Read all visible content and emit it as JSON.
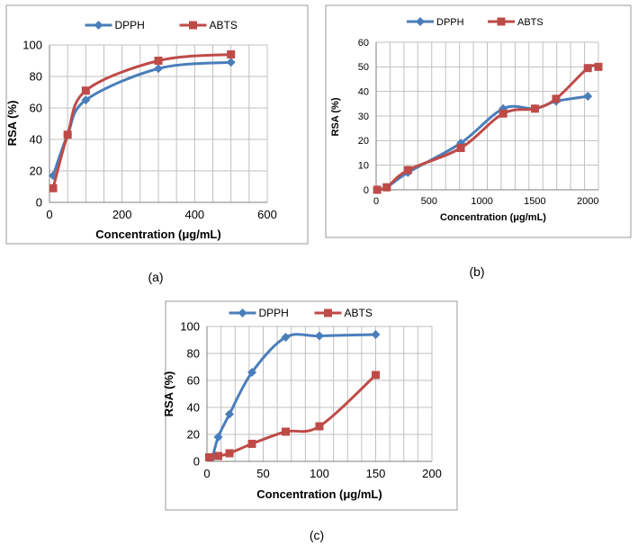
{
  "chart_data": [
    {
      "type": "line",
      "caption": "(a)",
      "xlabel": "Concentration (μg/mL)",
      "ylabel": "RSA (%)",
      "xlim": [
        0,
        600
      ],
      "ylim": [
        0,
        100
      ],
      "xticks": [
        0,
        200,
        400,
        600
      ],
      "yticks": [
        0,
        20,
        40,
        60,
        80,
        100
      ],
      "grid": true,
      "legend": "top-center",
      "series": [
        {
          "name": "DPPH",
          "marker": "diamond",
          "color": "#4a7ebb",
          "x": [
            10,
            50,
            100,
            300,
            500
          ],
          "y": [
            17,
            43,
            65,
            85,
            89
          ]
        },
        {
          "name": "ABTS",
          "marker": "square",
          "color": "#be4b48",
          "x": [
            10,
            50,
            100,
            300,
            500
          ],
          "y": [
            9,
            43,
            71,
            90,
            94
          ]
        }
      ]
    },
    {
      "type": "line",
      "caption": "(b)",
      "xlabel": "Concentration (μg/mL)",
      "ylabel": "RSA (%)",
      "xlim": [
        0,
        2100
      ],
      "ylim": [
        0,
        60
      ],
      "xticks": [
        0,
        500,
        1000,
        1500,
        2000
      ],
      "yticks": [
        0,
        10,
        20,
        30,
        40,
        50,
        60
      ],
      "grid": true,
      "legend": "top-center",
      "series": [
        {
          "name": "DPPH",
          "marker": "diamond",
          "color": "#4a7ebb",
          "x": [
            10,
            100,
            300,
            800,
            1200,
            1500,
            1700,
            2000
          ],
          "y": [
            0,
            1,
            7,
            19,
            33,
            33,
            36,
            38
          ]
        },
        {
          "name": "ABTS",
          "marker": "square",
          "color": "#be4b48",
          "x": [
            10,
            100,
            300,
            800,
            1200,
            1500,
            1700,
            2000,
            2100
          ],
          "y": [
            0,
            1,
            8,
            17,
            31,
            33,
            37,
            49.5,
            50
          ]
        }
      ]
    },
    {
      "type": "line",
      "caption": "(c)",
      "xlabel": "Concentration (μg/mL)",
      "ylabel": "RSA (%)",
      "xlim": [
        0,
        200
      ],
      "ylim": [
        0,
        100
      ],
      "xticks": [
        0,
        50,
        100,
        150,
        200
      ],
      "yticks": [
        0,
        20,
        40,
        60,
        80,
        100
      ],
      "grid": true,
      "legend": "top-center",
      "series": [
        {
          "name": "DPPH",
          "marker": "diamond",
          "color": "#4a7ebb",
          "x": [
            5,
            10,
            20,
            40,
            70,
            100,
            150
          ],
          "y": [
            3,
            18,
            35,
            66,
            92,
            93,
            94
          ]
        },
        {
          "name": "ABTS",
          "marker": "square",
          "color": "#be4b48",
          "x": [
            2,
            10,
            20,
            40,
            70,
            100,
            150
          ],
          "y": [
            3,
            4,
            6,
            13,
            22,
            26,
            64
          ]
        }
      ]
    }
  ]
}
